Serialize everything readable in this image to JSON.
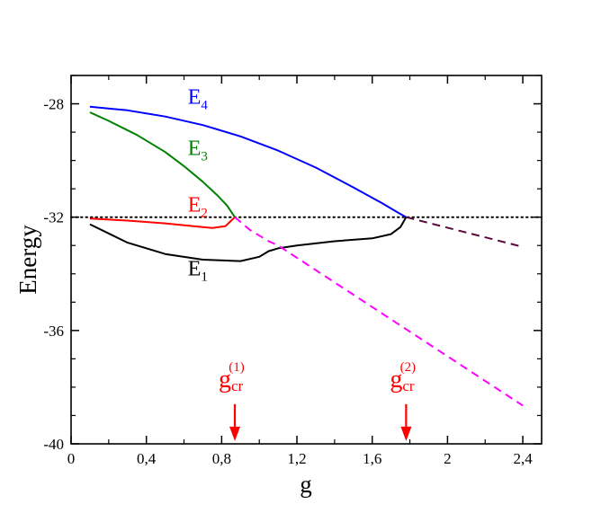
{
  "chart_data": {
    "type": "line",
    "xlabel": "g",
    "ylabel": "Energy",
    "xlim": [
      0,
      2.5
    ],
    "ylim": [
      -40,
      -27
    ],
    "x_ticks": [
      {
        "value": 0,
        "label": "0"
      },
      {
        "value": 0.4,
        "label": "0,4"
      },
      {
        "value": 0.8,
        "label": "0,8"
      },
      {
        "value": 1.2,
        "label": "1,2"
      },
      {
        "value": 1.6,
        "label": "1,6"
      },
      {
        "value": 2.0,
        "label": "2"
      },
      {
        "value": 2.4,
        "label": "2,4"
      }
    ],
    "y_ticks": [
      {
        "value": -28,
        "label": "-28"
      },
      {
        "value": -32,
        "label": "-32"
      },
      {
        "value": -36,
        "label": "-36"
      },
      {
        "value": -40,
        "label": "-40"
      }
    ],
    "grid": false,
    "reference_line": {
      "y": -32,
      "style": "dotted",
      "color": "#000000"
    },
    "series": [
      {
        "label_base": "E",
        "label_sub": "4",
        "color": "#0000ff",
        "style": "solid",
        "label_at": [
          0.62,
          -28.0
        ],
        "points": [
          [
            0.1,
            -28.1
          ],
          [
            0.3,
            -28.23
          ],
          [
            0.5,
            -28.45
          ],
          [
            0.7,
            -28.75
          ],
          [
            0.9,
            -29.15
          ],
          [
            1.1,
            -29.65
          ],
          [
            1.3,
            -30.25
          ],
          [
            1.5,
            -30.95
          ],
          [
            1.65,
            -31.5
          ],
          [
            1.74,
            -31.85
          ],
          [
            1.78,
            -32.0
          ]
        ]
      },
      {
        "label_base": "E",
        "label_sub": "3",
        "color": "#008000",
        "style": "solid",
        "label_at": [
          0.62,
          -29.8
        ],
        "points": [
          [
            0.1,
            -28.3
          ],
          [
            0.2,
            -28.6
          ],
          [
            0.35,
            -29.1
          ],
          [
            0.5,
            -29.7
          ],
          [
            0.6,
            -30.2
          ],
          [
            0.7,
            -30.75
          ],
          [
            0.78,
            -31.25
          ],
          [
            0.83,
            -31.6
          ],
          [
            0.87,
            -32.0
          ]
        ]
      },
      {
        "label_base": "E",
        "label_sub": "2",
        "color": "#ff0000",
        "style": "solid",
        "label_at": [
          0.62,
          -31.8
        ],
        "points": [
          [
            0.1,
            -32.05
          ],
          [
            0.3,
            -32.12
          ],
          [
            0.5,
            -32.22
          ],
          [
            0.65,
            -32.32
          ],
          [
            0.75,
            -32.38
          ],
          [
            0.82,
            -32.32
          ],
          [
            0.87,
            -32.0
          ]
        ]
      },
      {
        "label_base": "E",
        "label_sub": "1",
        "color": "#000000",
        "style": "solid",
        "label_at": [
          0.62,
          -34.05
        ],
        "points": [
          [
            0.1,
            -32.25
          ],
          [
            0.3,
            -32.9
          ],
          [
            0.5,
            -33.3
          ],
          [
            0.7,
            -33.5
          ],
          [
            0.9,
            -33.55
          ],
          [
            1.0,
            -33.4
          ],
          [
            1.05,
            -33.2
          ],
          [
            1.1,
            -33.1
          ],
          [
            1.2,
            -33.0
          ],
          [
            1.4,
            -32.85
          ],
          [
            1.6,
            -32.75
          ],
          [
            1.7,
            -32.6
          ],
          [
            1.75,
            -32.35
          ],
          [
            1.78,
            -32.0
          ]
        ]
      },
      {
        "color": "#ff00ff",
        "style": "dashed",
        "points": [
          [
            0.87,
            -32.0
          ],
          [
            0.95,
            -32.45
          ],
          [
            1.05,
            -32.85
          ],
          [
            1.1,
            -33.0
          ],
          [
            2.4,
            -38.65
          ]
        ]
      },
      {
        "color": "#5a0a3a",
        "style": "dashed",
        "points": [
          [
            1.78,
            -32.0
          ],
          [
            2.4,
            -33.05
          ]
        ]
      }
    ],
    "annotations": [
      {
        "base": "g",
        "sub": "cr",
        "sup": "(1)",
        "x": 0.87,
        "arrow_from": -38.6,
        "arrow_to": -39.9,
        "text_y": -38.0,
        "color": "#ff0000"
      },
      {
        "base": "g",
        "sub": "cr",
        "sup": "(2)",
        "x": 1.78,
        "arrow_from": -38.6,
        "arrow_to": -39.9,
        "text_y": -38.0,
        "color": "#ff0000"
      }
    ]
  }
}
